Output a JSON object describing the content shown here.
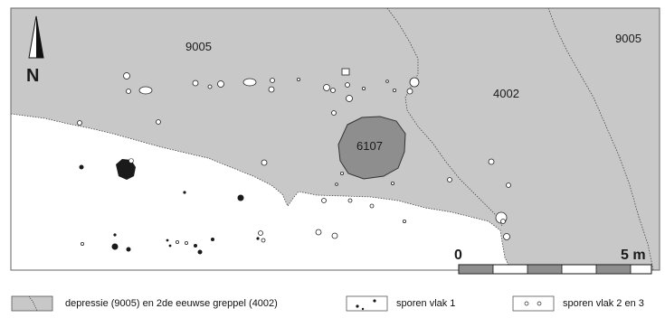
{
  "north_arrow": {
    "letter": "N"
  },
  "zones": {
    "depression_west": "9005",
    "depression_east": "9005",
    "greppel": "4002",
    "pit": "6107"
  },
  "scale_bar": {
    "start_label": "0",
    "end_label": "5 m"
  },
  "legend": [
    {
      "key": "depression",
      "text": "depressie (9005) en 2de eeuwse greppel (4002)"
    },
    {
      "key": "sporen1",
      "text": "sporen vlak 1"
    },
    {
      "key": "sporen23",
      "text": "sporen vlak 2 en 3"
    }
  ],
  "colors": {
    "depression_fill": "#c8c8c8",
    "pit_fill": "#8e8e8e",
    "feature_dark": "#1a1a1a",
    "feature_light": "#ffffff"
  }
}
